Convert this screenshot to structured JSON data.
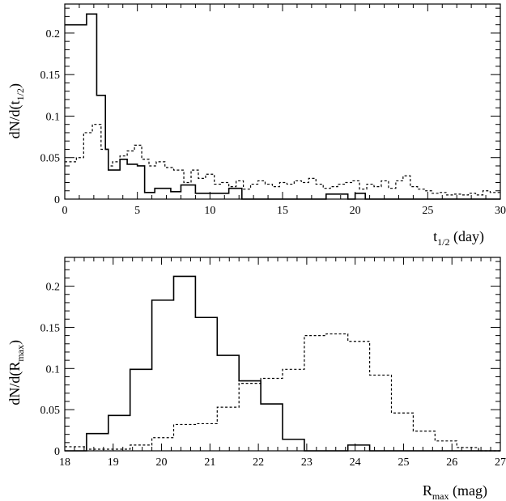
{
  "chart_data": [
    {
      "type": "histogram-step",
      "xlim": [
        0,
        30
      ],
      "ylim": [
        0,
        0.235
      ],
      "xticks": [
        0,
        5,
        10,
        15,
        20,
        25,
        30
      ],
      "xticklabels": [
        "0",
        "5",
        "10",
        "15",
        "20",
        "25",
        "30"
      ],
      "yticks": [
        0,
        0.05,
        0.1,
        0.15,
        0.2
      ],
      "yticklabels": [
        "0",
        "0.05",
        "0.1",
        "0.15",
        "0.2"
      ],
      "xlabel": {
        "main": "t",
        "sub": "1/2",
        "suffix": " (day)"
      },
      "ylabel": {
        "main": "dN/d(t",
        "sub": "1/2",
        "suffix": ")"
      },
      "series": [
        {
          "style": "solid",
          "edges": [
            0,
            1.5,
            2.2,
            2.8,
            3.0,
            3.8,
            4.3,
            5.0,
            5.5,
            6.2,
            7.3,
            8.0,
            9.0,
            10.7,
            11.3,
            12.2,
            13.0,
            18.0,
            19.5,
            20.0,
            20.7,
            30.0
          ],
          "values": [
            0.21,
            0.223,
            0.125,
            0.06,
            0.035,
            0.048,
            0.042,
            0.04,
            0.008,
            0.013,
            0.009,
            0.017,
            0.007,
            0.007,
            0.013,
            0.0,
            0.0,
            0.006,
            0.0,
            0.007,
            0.0
          ]
        },
        {
          "style": "dashed",
          "edges": [
            0,
            0.8,
            1.3,
            1.9,
            2.5,
            3.0,
            3.3,
            3.8,
            4.3,
            4.8,
            5.3,
            5.8,
            6.3,
            6.9,
            7.5,
            8.2,
            8.7,
            9.2,
            9.7,
            10.3,
            10.8,
            11.3,
            11.8,
            12.3,
            12.8,
            13.3,
            13.8,
            14.3,
            14.8,
            15.3,
            15.8,
            16.3,
            16.8,
            17.3,
            17.8,
            18.3,
            18.8,
            19.3,
            19.8,
            20.3,
            20.8,
            21.3,
            21.8,
            22.3,
            22.8,
            23.3,
            23.8,
            24.3,
            24.8,
            25.3,
            25.8,
            26.3,
            26.8,
            27.3,
            27.8,
            28.3,
            28.8,
            29.3,
            30.0
          ],
          "values": [
            0.045,
            0.05,
            0.08,
            0.09,
            0.06,
            0.04,
            0.045,
            0.052,
            0.058,
            0.065,
            0.048,
            0.04,
            0.045,
            0.038,
            0.035,
            0.02,
            0.035,
            0.025,
            0.03,
            0.018,
            0.02,
            0.015,
            0.022,
            0.012,
            0.018,
            0.022,
            0.018,
            0.015,
            0.02,
            0.018,
            0.022,
            0.02,
            0.025,
            0.018,
            0.013,
            0.015,
            0.018,
            0.02,
            0.022,
            0.012,
            0.018,
            0.015,
            0.022,
            0.013,
            0.022,
            0.028,
            0.015,
            0.012,
            0.01,
            0.007,
            0.008,
            0.005,
            0.006,
            0.005,
            0.007,
            0.005,
            0.01,
            0.008
          ]
        }
      ]
    },
    {
      "type": "histogram-step",
      "xlim": [
        18,
        27
      ],
      "ylim": [
        0,
        0.235
      ],
      "xticks": [
        18,
        19,
        20,
        21,
        22,
        23,
        24,
        25,
        26,
        27
      ],
      "xticklabels": [
        "18",
        "19",
        "20",
        "21",
        "22",
        "23",
        "24",
        "25",
        "26",
        "27"
      ],
      "yticks": [
        0,
        0.05,
        0.1,
        0.15,
        0.2
      ],
      "yticklabels": [
        "0",
        "0.05",
        "0.1",
        "0.15",
        "0.2"
      ],
      "xlabel": {
        "main": "R",
        "sub": "max",
        "suffix": " (mag)"
      },
      "ylabel": {
        "main": "dN/d(R",
        "sub": "max",
        "suffix": ")"
      },
      "series": [
        {
          "style": "solid",
          "edges": [
            18,
            18.45,
            18.9,
            19.35,
            19.8,
            20.25,
            20.7,
            21.15,
            21.6,
            22.05,
            22.5,
            22.95,
            23.4,
            23.85,
            24.3,
            27
          ],
          "values": [
            0.0,
            0.021,
            0.043,
            0.099,
            0.183,
            0.212,
            0.162,
            0.116,
            0.085,
            0.057,
            0.014,
            0.0,
            0.0,
            0.007,
            0.0
          ]
        },
        {
          "style": "dashed",
          "edges": [
            18,
            18.45,
            18.9,
            19.35,
            19.8,
            20.25,
            20.7,
            21.15,
            21.6,
            22.05,
            22.5,
            22.95,
            23.4,
            23.85,
            24.3,
            24.75,
            25.2,
            25.65,
            26.1,
            26.55,
            27
          ],
          "values": [
            0.005,
            0.002,
            0.002,
            0.007,
            0.016,
            0.032,
            0.033,
            0.053,
            0.082,
            0.088,
            0.099,
            0.14,
            0.142,
            0.133,
            0.092,
            0.046,
            0.024,
            0.012,
            0.004,
            0.0
          ]
        }
      ]
    }
  ]
}
